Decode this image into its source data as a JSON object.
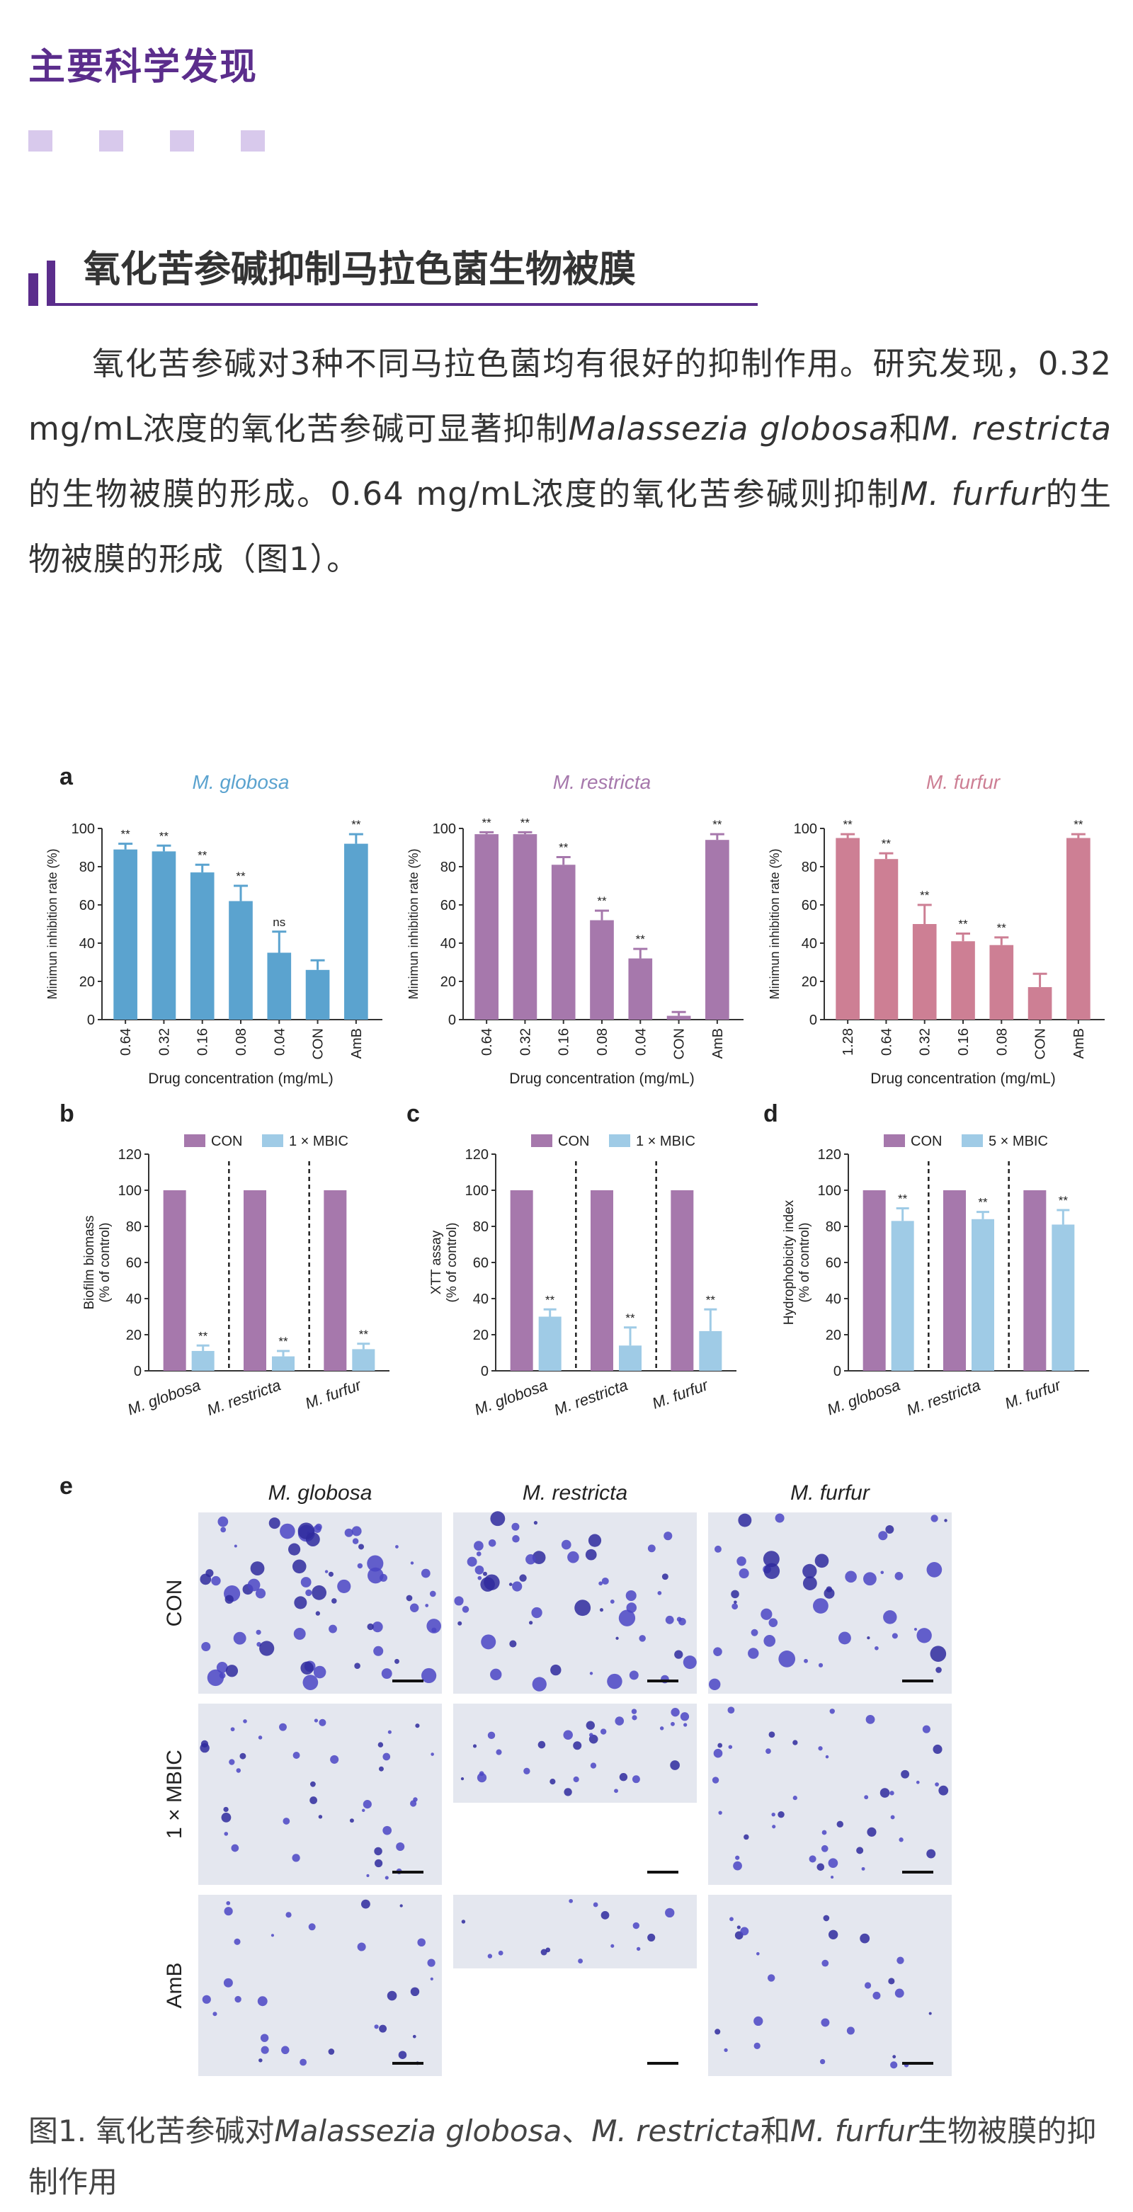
{
  "header": {
    "section_title": "主要科学发现",
    "subtitle": "氧化苦参碱抑制马拉色菌生物被膜"
  },
  "body": {
    "p1": "氧化苦参碱对3种不同马拉色菌均有很好的抑制作用。研究发现，0.32 mg/mL浓度的氧化苦参碱可显著抑制",
    "sp1": "Malassezia globosa",
    "p2": "和",
    "sp2": "M. restricta",
    "p3": "的生物被膜的形成。0.64 mg/mL浓度的氧化苦参碱则抑制",
    "sp3": "M. furfur",
    "p4": "的生物被膜的形成（图1）。"
  },
  "caption": {
    "c1": "图1. 氧化苦参碱对",
    "s1": "Malassezia globosa",
    "c2": "、",
    "s2": "M. restricta",
    "c3": "和",
    "s3": "M. furfur",
    "c4": "生物被膜的抑制作用"
  },
  "colors": {
    "blue": "#5ba3cf",
    "purple": "#a678ac",
    "pink": "#cd7f94",
    "light_blue": "#9fcbe6",
    "accent": "#5b2d8c"
  },
  "panel_e": {
    "letter": "e",
    "cols": [
      "M. globosa",
      "M. restricta",
      "M. furfur"
    ],
    "rows": [
      "CON",
      "1 × MBIC",
      "AmB"
    ]
  },
  "chart_data": [
    {
      "panel": "a",
      "type": "bar",
      "title": "M. globosa",
      "categories": [
        "0.64",
        "0.32",
        "0.16",
        "0.08",
        "0.04",
        "CON",
        "AmB"
      ],
      "values": [
        89,
        88,
        77,
        62,
        35,
        26,
        92
      ],
      "errors": [
        3,
        3,
        4,
        8,
        11,
        5,
        5
      ],
      "labels": [
        "**",
        "**",
        "**",
        "**",
        "ns",
        "",
        "**"
      ],
      "ylabel": "Minimun inhibition rate (%)",
      "xlabel": "Drug concentration (mg/mL)",
      "ylim": [
        0,
        100
      ],
      "yticks": [
        0,
        20,
        40,
        60,
        80,
        100
      ],
      "color": "#5ba3cf",
      "title_color": "#5ba3cf"
    },
    {
      "panel": "",
      "type": "bar",
      "title": "M. restricta",
      "categories": [
        "0.64",
        "0.32",
        "0.16",
        "0.08",
        "0.04",
        "CON",
        "AmB"
      ],
      "values": [
        97,
        97,
        81,
        52,
        32,
        2,
        94
      ],
      "errors": [
        1,
        1,
        4,
        5,
        5,
        2,
        3
      ],
      "labels": [
        "**",
        "**",
        "**",
        "**",
        "**",
        "",
        "**"
      ],
      "ylabel": "Minimun inhibition rate (%)",
      "xlabel": "Drug concentration (mg/mL)",
      "ylim": [
        0,
        100
      ],
      "yticks": [
        0,
        20,
        40,
        60,
        80,
        100
      ],
      "color": "#a678ac",
      "title_color": "#a678ac"
    },
    {
      "panel": "",
      "type": "bar",
      "title": "M. furfur",
      "categories": [
        "1.28",
        "0.64",
        "0.32",
        "0.16",
        "0.08",
        "CON",
        "AmB"
      ],
      "values": [
        95,
        84,
        50,
        41,
        39,
        17,
        95
      ],
      "errors": [
        2,
        3,
        10,
        4,
        4,
        7,
        2
      ],
      "labels": [
        "**",
        "**",
        "**",
        "**",
        "**",
        "",
        "**"
      ],
      "ylabel": "Minimun inhibition rate (%)",
      "xlabel": "Drug concentration (mg/mL)",
      "ylim": [
        0,
        100
      ],
      "yticks": [
        0,
        20,
        40,
        60,
        80,
        100
      ],
      "color": "#cd7f94",
      "title_color": "#cd7f94"
    },
    {
      "panel": "b",
      "type": "bar",
      "title": "",
      "categories": [
        "M. globosa",
        "M. restricta",
        "M. furfur"
      ],
      "series": [
        {
          "name": "CON",
          "values": [
            100,
            100,
            100
          ]
        },
        {
          "name": "1 × MBIC",
          "values": [
            11,
            8,
            12
          ]
        }
      ],
      "errors": [
        3,
        3,
        3
      ],
      "labels": [
        "**",
        "**",
        "**"
      ],
      "ylabel": "Biofilm biomass (% of control)",
      "ylim": [
        0,
        120
      ],
      "yticks": [
        0,
        20,
        40,
        60,
        80,
        100,
        120
      ]
    },
    {
      "panel": "c",
      "type": "bar",
      "title": "",
      "categories": [
        "M. globosa",
        "M. restricta",
        "M. furfur"
      ],
      "series": [
        {
          "name": "CON",
          "values": [
            100,
            100,
            100
          ]
        },
        {
          "name": "1 × MBIC",
          "values": [
            30,
            14,
            22
          ]
        }
      ],
      "errors": [
        4,
        10,
        12
      ],
      "labels": [
        "**",
        "**",
        "**"
      ],
      "ylabel": "XTT assay (% of control)",
      "ylim": [
        0,
        120
      ],
      "yticks": [
        0,
        20,
        40,
        60,
        80,
        100,
        120
      ]
    },
    {
      "panel": "d",
      "type": "bar",
      "title": "",
      "categories": [
        "M. globosa",
        "M. restricta",
        "M. furfur"
      ],
      "series": [
        {
          "name": "CON",
          "values": [
            100,
            100,
            100
          ]
        },
        {
          "name": "5 × MBIC",
          "values": [
            83,
            84,
            81
          ]
        }
      ],
      "errors": [
        7,
        4,
        8
      ],
      "labels": [
        "**",
        "**",
        "**"
      ],
      "ylabel": "Hydrophobicity index (% of control)",
      "ylim": [
        0,
        120
      ],
      "yticks": [
        0,
        20,
        40,
        60,
        80,
        100,
        120
      ]
    }
  ]
}
